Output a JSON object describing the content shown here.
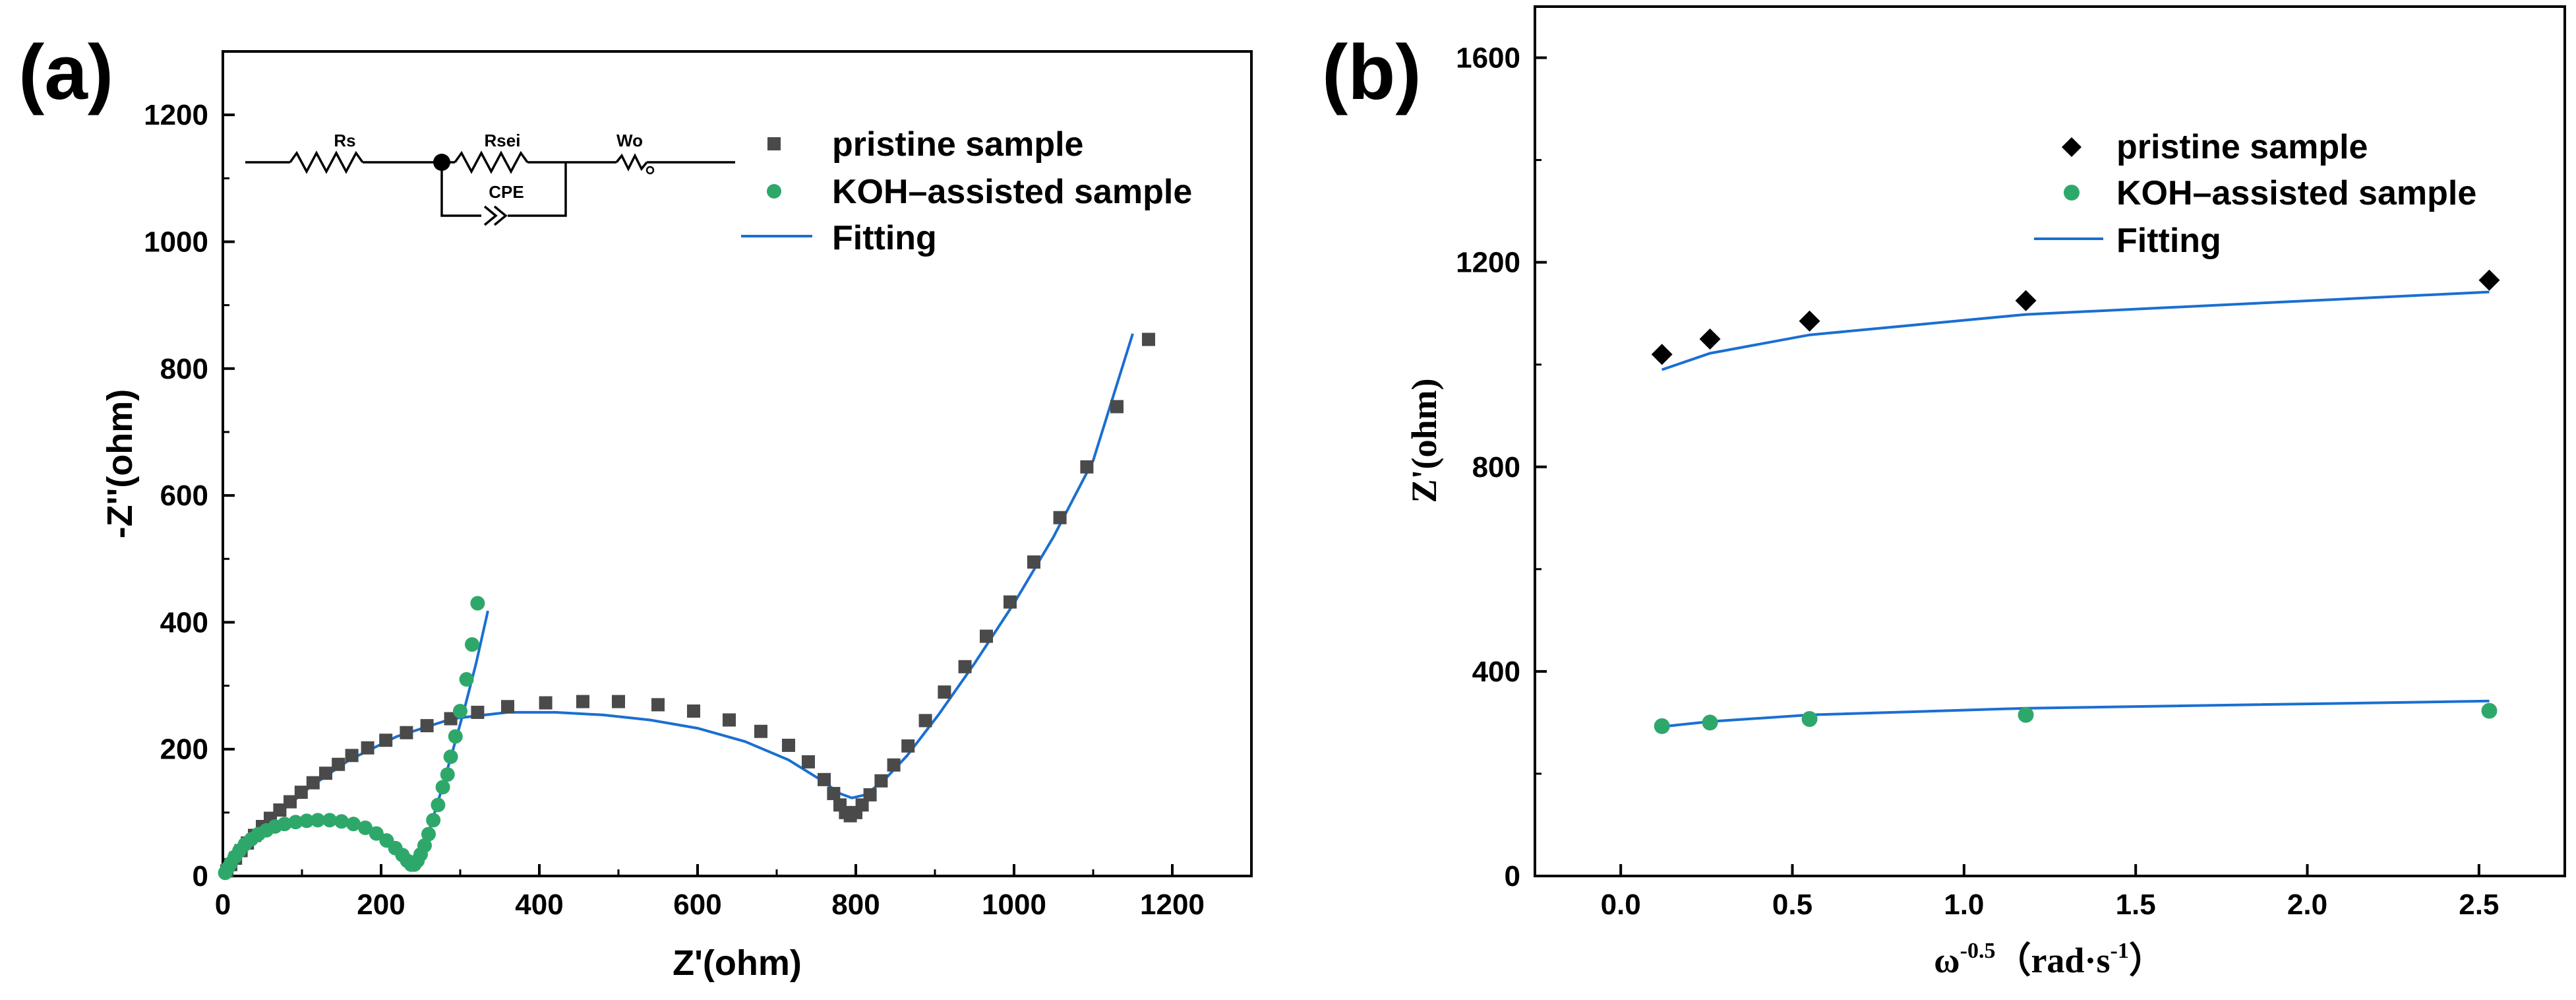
{
  "colors": {
    "pristine": "#4a4a4a",
    "koh": "#2ea86a",
    "fit": "#1a6fd1",
    "axis": "#000000",
    "pristine_b": "#000000"
  },
  "chart_data": [
    {
      "panel": "(a)",
      "type": "scatter",
      "title": "",
      "xlabel": "Z'(ohm)",
      "ylabel": "-Z''(ohm)",
      "xlim": [
        0,
        1300
      ],
      "ylim": [
        0,
        1300
      ],
      "xticks": [
        0,
        200,
        400,
        600,
        800,
        1000,
        1200
      ],
      "yticks": [
        0,
        200,
        400,
        600,
        800,
        1000,
        1200
      ],
      "legend_position": "top-right",
      "legend": [
        "pristine sample",
        "KOH–assisted sample",
        "Fitting"
      ],
      "circuit_labels": [
        "Rs",
        "Rsei",
        "Wo",
        "CPE"
      ],
      "series": [
        {
          "name": "pristine sample",
          "marker": "square",
          "points": [
            [
              5,
              8
            ],
            [
              10,
              18
            ],
            [
              16,
              28
            ],
            [
              23,
              40
            ],
            [
              31,
              52
            ],
            [
              40,
              64
            ],
            [
              50,
              78
            ],
            [
              60,
              91
            ],
            [
              72,
              104
            ],
            [
              85,
              117
            ],
            [
              99,
              132
            ],
            [
              114,
              147
            ],
            [
              130,
              162
            ],
            [
              146,
              176
            ],
            [
              163,
              190
            ],
            [
              183,
              202
            ],
            [
              206,
              214
            ],
            [
              232,
              226
            ],
            [
              258,
              237
            ],
            [
              288,
              248
            ],
            [
              322,
              258
            ],
            [
              360,
              267
            ],
            [
              408,
              273
            ],
            [
              455,
              275
            ],
            [
              500,
              275
            ],
            [
              550,
              270
            ],
            [
              595,
              260
            ],
            [
              640,
              246
            ],
            [
              680,
              228
            ],
            [
              715,
              206
            ],
            [
              740,
              180
            ],
            [
              760,
              152
            ],
            [
              772,
              130
            ],
            [
              780,
              112
            ],
            [
              787,
              100
            ],
            [
              793,
              95
            ],
            [
              800,
              100
            ],
            [
              808,
              112
            ],
            [
              818,
              128
            ],
            [
              832,
              150
            ],
            [
              848,
              175
            ],
            [
              866,
              205
            ],
            [
              888,
              245
            ],
            [
              912,
              290
            ],
            [
              938,
              330
            ],
            [
              965,
              378
            ],
            [
              995,
              432
            ],
            [
              1025,
              495
            ],
            [
              1058,
              565
            ],
            [
              1092,
              645
            ],
            [
              1130,
              740
            ],
            [
              1170,
              846
            ]
          ]
        },
        {
          "name": "KOH–assisted sample",
          "marker": "circle",
          "points": [
            [
              3,
              5
            ],
            [
              6,
              12
            ],
            [
              10,
              20
            ],
            [
              15,
              30
            ],
            [
              21,
              40
            ],
            [
              28,
              50
            ],
            [
              36,
              58
            ],
            [
              45,
              66
            ],
            [
              55,
              72
            ],
            [
              66,
              78
            ],
            [
              78,
              82
            ],
            [
              92,
              85
            ],
            [
              106,
              87
            ],
            [
              120,
              88
            ],
            [
              135,
              88
            ],
            [
              150,
              86
            ],
            [
              165,
              82
            ],
            [
              180,
              76
            ],
            [
              194,
              67
            ],
            [
              207,
              56
            ],
            [
              218,
              44
            ],
            [
              227,
              33
            ],
            [
              233,
              24
            ],
            [
              238,
              18
            ],
            [
              242,
              18
            ],
            [
              246,
              24
            ],
            [
              250,
              34
            ],
            [
              255,
              48
            ],
            [
              260,
              66
            ],
            [
              266,
              88
            ],
            [
              272,
              112
            ],
            [
              278,
              140
            ],
            [
              284,
              160
            ],
            [
              288,
              188
            ],
            [
              294,
              220
            ],
            [
              300,
              260
            ],
            [
              308,
              310
            ],
            [
              315,
              365
            ],
            [
              322,
              430
            ]
          ]
        },
        {
          "name": "Fitting (pristine)",
          "marker": "line",
          "points": [
            [
              4,
              0
            ],
            [
              20,
              30
            ],
            [
              40,
              62
            ],
            [
              70,
              98
            ],
            [
              110,
              140
            ],
            [
              160,
              183
            ],
            [
              220,
              220
            ],
            [
              290,
              248
            ],
            [
              360,
              258
            ],
            [
              420,
              258
            ],
            [
              480,
              254
            ],
            [
              540,
              246
            ],
            [
              600,
              233
            ],
            [
              660,
              212
            ],
            [
              715,
              183
            ],
            [
              755,
              152
            ],
            [
              780,
              130
            ],
            [
              795,
              123
            ],
            [
              812,
              128
            ],
            [
              835,
              150
            ],
            [
              865,
              190
            ],
            [
              905,
              255
            ],
            [
              950,
              335
            ],
            [
              1000,
              430
            ],
            [
              1050,
              535
            ],
            [
              1100,
              655
            ],
            [
              1150,
              855
            ]
          ]
        },
        {
          "name": "Fitting (KOH)",
          "marker": "line",
          "points": [
            [
              0,
              0
            ],
            [
              10,
              22
            ],
            [
              25,
              45
            ],
            [
              45,
              63
            ],
            [
              70,
              77
            ],
            [
              100,
              86
            ],
            [
              130,
              89
            ],
            [
              160,
              86
            ],
            [
              185,
              77
            ],
            [
              205,
              63
            ],
            [
              222,
              45
            ],
            [
              234,
              27
            ],
            [
              240,
              18
            ],
            [
              246,
              25
            ],
            [
              260,
              68
            ],
            [
              275,
              130
            ],
            [
              290,
              195
            ],
            [
              305,
              262
            ],
            [
              320,
              335
            ],
            [
              335,
              418
            ]
          ]
        }
      ]
    },
    {
      "panel": "(b)",
      "type": "scatter",
      "title": "",
      "xlabel": "ω",
      "xlabel_sup": "-0.5",
      "xlabel_unit": "（rad·s",
      "xlabel_unit_sup": "-1",
      "xlabel_close": "）",
      "ylabel": "Z'(ohm)",
      "xlim": [
        -0.25,
        2.75
      ],
      "ylim": [
        0,
        1700
      ],
      "xticks": [
        0.0,
        0.5,
        1.0,
        1.5,
        2.0,
        2.5
      ],
      "xtick_labels": [
        "0.0",
        "0.5",
        "1.0",
        "1.5",
        "2.0",
        "2.5"
      ],
      "yticks": [
        0,
        400,
        800,
        1200,
        1600
      ],
      "legend_position": "top-right",
      "legend": [
        "pristine sample",
        "KOH–assisted sample",
        "Fitting"
      ],
      "series": [
        {
          "name": "pristine sample",
          "marker": "diamond",
          "points": [
            [
              0.12,
              1020
            ],
            [
              0.26,
              1050
            ],
            [
              0.55,
              1085
            ],
            [
              1.18,
              1125
            ],
            [
              2.53,
              1165
            ]
          ]
        },
        {
          "name": "KOH–assisted sample",
          "marker": "circle",
          "points": [
            [
              0.12,
              293
            ],
            [
              0.26,
              300
            ],
            [
              0.55,
              307
            ],
            [
              1.18,
              315
            ],
            [
              2.53,
              323
            ]
          ]
        },
        {
          "name": "Fitting (pristine)",
          "marker": "line",
          "points": [
            [
              0.12,
              990
            ],
            [
              0.26,
              1022
            ],
            [
              0.55,
              1058
            ],
            [
              1.18,
              1098
            ],
            [
              2.53,
              1142
            ]
          ]
        },
        {
          "name": "Fitting (KOH)",
          "marker": "line",
          "points": [
            [
              0.12,
              292
            ],
            [
              0.26,
              302
            ],
            [
              0.55,
              315
            ],
            [
              1.18,
              328
            ],
            [
              2.53,
              342
            ]
          ]
        }
      ]
    }
  ]
}
